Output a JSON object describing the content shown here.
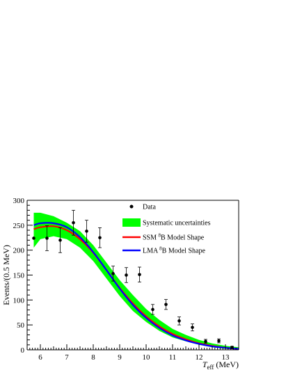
{
  "chart_data": {
    "type": "scatter",
    "x_label_parts": {
      "main": "T",
      "sub": "eff",
      "unit": "(MeV)"
    },
    "y_label": "Events/(0.5 MeV)",
    "xlim": [
      5.5,
      13.5
    ],
    "ylim": [
      0,
      300
    ],
    "x_ticks": [
      6,
      7,
      8,
      9,
      10,
      11,
      12,
      13
    ],
    "y_ticks": [
      0,
      50,
      100,
      150,
      200,
      250,
      300
    ],
    "grid": false,
    "legend_position": "top-right",
    "legend": [
      {
        "key": "data",
        "label": "Data",
        "kind": "point"
      },
      {
        "key": "band",
        "label": "Systematic uncertainties",
        "kind": "box"
      },
      {
        "key": "ssm",
        "label_pre": "SSM ",
        "label_sup": "8",
        "label_post": "B Model Shape",
        "kind": "line"
      },
      {
        "key": "lma",
        "label_pre": "LMA ",
        "label_sup": "8",
        "label_post": "B Model Shape",
        "kind": "line"
      }
    ],
    "colors": {
      "band": "#00ff00",
      "ssm": "#ff0000",
      "lma": "#0000ff",
      "data": "#000000"
    },
    "data_points": [
      {
        "x": 5.75,
        "y": 224,
        "err": 0
      },
      {
        "x": 6.25,
        "y": 224,
        "err": 25
      },
      {
        "x": 6.75,
        "y": 220,
        "err": 25
      },
      {
        "x": 7.25,
        "y": 255,
        "err": 25
      },
      {
        "x": 7.75,
        "y": 238,
        "err": 22
      },
      {
        "x": 8.25,
        "y": 225,
        "err": 20
      },
      {
        "x": 8.75,
        "y": 153,
        "err": 15
      },
      {
        "x": 9.25,
        "y": 150,
        "err": 15
      },
      {
        "x": 9.75,
        "y": 151,
        "err": 15
      },
      {
        "x": 10.25,
        "y": 81,
        "err": 10
      },
      {
        "x": 10.75,
        "y": 91,
        "err": 10
      },
      {
        "x": 11.25,
        "y": 58,
        "err": 8
      },
      {
        "x": 11.75,
        "y": 45,
        "err": 7
      },
      {
        "x": 12.25,
        "y": 17,
        "err": 4
      },
      {
        "x": 12.75,
        "y": 18,
        "err": 4
      },
      {
        "x": 13.25,
        "y": 5,
        "err": 2
      }
    ],
    "band": {
      "x": [
        5.75,
        6.0,
        6.5,
        7.0,
        7.5,
        8.0,
        8.5,
        9.0,
        9.5,
        10.0,
        10.5,
        11.0,
        11.5,
        12.0,
        12.5,
        13.0,
        13.5
      ],
      "lower": [
        205,
        222,
        228,
        222,
        205,
        178,
        143,
        108,
        78,
        56,
        38,
        25,
        17,
        10,
        5,
        2,
        1
      ],
      "upper": [
        275,
        275,
        268,
        255,
        238,
        210,
        175,
        140,
        110,
        82,
        60,
        42,
        30,
        20,
        13,
        8,
        5
      ]
    },
    "ssm_curve": {
      "x": [
        5.75,
        6.0,
        6.5,
        7.0,
        7.5,
        8.0,
        8.5,
        9.0,
        9.5,
        10.0,
        10.5,
        11.0,
        11.5,
        12.0,
        12.5,
        13.0,
        13.5
      ],
      "y": [
        242,
        246,
        248,
        240,
        222,
        195,
        160,
        124,
        93,
        67,
        47,
        32,
        21,
        13,
        8,
        4,
        2
      ]
    },
    "lma_curve": {
      "x": [
        5.75,
        6.0,
        6.5,
        7.0,
        7.5,
        8.0,
        8.5,
        9.0,
        9.5,
        10.0,
        10.5,
        11.0,
        11.5,
        12.0,
        12.5,
        13.0,
        13.5
      ],
      "y": [
        250,
        254,
        254,
        246,
        226,
        196,
        160,
        123,
        90,
        64,
        44,
        29,
        19,
        12,
        7,
        4,
        2
      ]
    }
  }
}
